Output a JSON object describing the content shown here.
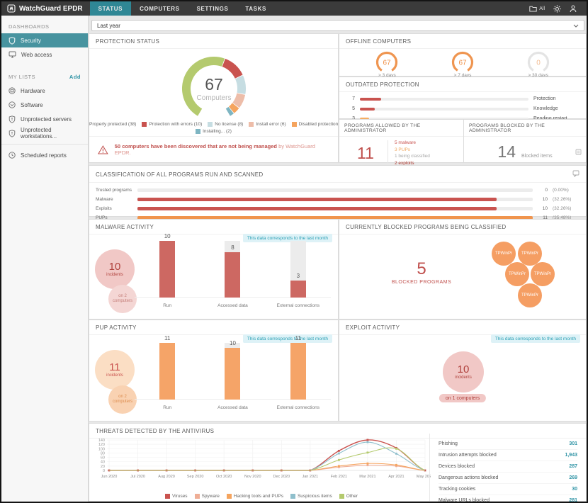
{
  "topbar": {
    "brand": "WatchGuard EPDR",
    "tabs": [
      {
        "label": "STATUS"
      },
      {
        "label": "COMPUTERS"
      },
      {
        "label": "SETTINGS"
      },
      {
        "label": "TASKS"
      }
    ],
    "scope": "All"
  },
  "sidebar": {
    "dashboards_header": "DASHBOARDS",
    "items_dash": [
      {
        "label": "Security"
      },
      {
        "label": "Web access"
      }
    ],
    "my_lists_header": "MY LISTS",
    "add_label": "Add",
    "lists": [
      "Hardware",
      "Software",
      "Unprotected servers",
      "Unprotected workstations...",
      "Scheduled reports"
    ]
  },
  "filter": {
    "value": "Last year"
  },
  "protection": {
    "title": "PROTECTION STATUS",
    "center_value": "67",
    "center_label": "Computers",
    "segments": [
      {
        "label": "Properly protected (38)",
        "value": 38,
        "color": "#b4ca6e"
      },
      {
        "label": "Protection with errors (10)",
        "value": 10,
        "color": "#c9534f"
      },
      {
        "label": "No license (8)",
        "value": 8,
        "color": "#c6dde2"
      },
      {
        "label": "Install error (6)",
        "value": 6,
        "color": "#edbda9"
      },
      {
        "label": "Disabled protection (3)",
        "value": 3,
        "color": "#f5a45e"
      },
      {
        "label": "Installing... (2)",
        "value": 2,
        "color": "#7eb5c2"
      }
    ],
    "warning_bold": "50 computers have been discovered that are not being managed",
    "warning_tail": " by WatchGuard EPDR."
  },
  "offline": {
    "title": "OFFLINE COMPUTERS",
    "gauges": [
      {
        "value": "67",
        "label": "> 3 days",
        "arc": "#ef9550",
        "text": "#ef8f45"
      },
      {
        "value": "67",
        "label": "> 7 days",
        "arc": "#ef9550",
        "text": "#ef8f45"
      },
      {
        "value": "0",
        "label": "> 30 days",
        "arc": "#e4e4e4",
        "text": "#f2bc92"
      }
    ]
  },
  "outdated": {
    "title": "OUTDATED PROTECTION",
    "max": 56,
    "rows": [
      {
        "value": 7,
        "label": "Protection",
        "color": "#c9534f"
      },
      {
        "value": 5,
        "label": "Knowledge",
        "color": "#c9534f"
      },
      {
        "value": 3,
        "label": "Pending restart",
        "color": "#f5ad62"
      }
    ]
  },
  "allowed": {
    "title": "PROGRAMS ALLOWED BY THE ADMINISTRATOR",
    "value": "11",
    "breakdown": [
      {
        "text": "5 malware",
        "color": "#c9534f"
      },
      {
        "text": "3 PUPs",
        "color": "#f0a860"
      },
      {
        "text": "1 being classified",
        "color": "#a9a9a9"
      },
      {
        "text": "2 exploits",
        "color": "#b03a30"
      }
    ]
  },
  "blocked": {
    "title": "PROGRAMS BLOCKED BY THE ADMINISTRATOR",
    "value": "14",
    "label": "Blocked items"
  },
  "classification": {
    "title": "CLASSIFICATION OF ALL PROGRAMS RUN AND SCANNED",
    "max": 11,
    "rows": [
      {
        "label": "Trusted programs",
        "value": 0,
        "value_label": "0",
        "pct": "(0.00%)",
        "color": "#c9534f"
      },
      {
        "label": "Malware",
        "value": 10,
        "value_label": "10",
        "pct": "(32.26%)",
        "color": "#c9534f"
      },
      {
        "label": "Exploits",
        "value": 10,
        "value_label": "10",
        "pct": "(32.26%)",
        "color": "#c9534f"
      },
      {
        "label": "PUPs",
        "value": 11,
        "value_label": "11",
        "pct": "(35.48%)",
        "color": "#f0944d"
      }
    ]
  },
  "malware_activity": {
    "title": "MALWARE ACTIVITY",
    "badge": "This data corresponds to the last month",
    "incidents": "10",
    "incidents_label": "incidents",
    "comp_line1": "on 2",
    "comp_line2": "computers",
    "max": 10,
    "bar_color": "#cd6862",
    "bubble_bg": "#f1c8c6",
    "bubble_fg": "#b0413c",
    "bubble2_bg": "#f4d6d4",
    "bubble2_fg": "#c47d78",
    "bars": [
      {
        "label": "Run",
        "value": 10
      },
      {
        "label": "Accessed data",
        "value": 8
      },
      {
        "label": "External connections",
        "value": 3
      }
    ]
  },
  "blocked_classified": {
    "title": "CURRENTLY BLOCKED PROGRAMS BEING CLASSIFIED",
    "value": "5",
    "label": "BLOCKED PROGRAMS",
    "bubble_color": "#f59e63",
    "bubbles": [
      "TPWinPr",
      "TPWinPr",
      "TPWinPr",
      "TPWinPr",
      "TPWinPr"
    ]
  },
  "pup_activity": {
    "title": "PUP ACTIVITY",
    "badge": "This data corresponds to the last month",
    "incidents": "11",
    "incidents_label": "incidents",
    "comp_line1": "on 2",
    "comp_line2": "computers",
    "max": 11,
    "bar_color": "#f5a468",
    "bubble_bg": "#fbdec4",
    "bubble_fg": "#c9534f",
    "bubble2_bg": "#f9d2b2",
    "bubble2_fg": "#dd8c4e",
    "bars": [
      {
        "label": "Run",
        "value": 11
      },
      {
        "label": "Accessed data",
        "value": 10
      },
      {
        "label": "External connections",
        "value": 11
      }
    ]
  },
  "exploit_activity": {
    "title": "EXPLOIT ACTIVITY",
    "badge": "This data corresponds to the last month",
    "incidents": "10",
    "incidents_label": "incidents",
    "pill": "on 1 computers",
    "bubble_bg": "#f1c8c6",
    "bubble_fg": "#b0413c"
  },
  "threats": {
    "title": "THREATS DETECTED BY THE ANTIVIRUS",
    "chart_data": {
      "type": "line",
      "x": [
        "Jun 2020",
        "Jul 2020",
        "Aug 2020",
        "Sep 2020",
        "Oct 2020",
        "Nov 2020",
        "Dec 2020",
        "Jan 2021",
        "Feb 2021",
        "Mar 2021",
        "Apr 2021",
        "May 2021"
      ],
      "ylim": [
        0,
        140
      ],
      "yticks": [
        0,
        20,
        40,
        60,
        80,
        100,
        120,
        140
      ],
      "grid": true,
      "legend_position": "bottom",
      "series": [
        {
          "name": "Viruses",
          "color": "#c9534f",
          "values": [
            0,
            0,
            0,
            0,
            0,
            0,
            0,
            0,
            90,
            140,
            103,
            0
          ]
        },
        {
          "name": "Spyware",
          "color": "#efae96",
          "values": [
            0,
            0,
            0,
            0,
            0,
            0,
            0,
            0,
            15,
            24,
            20,
            0
          ]
        },
        {
          "name": "Hacking tools and PUPs",
          "color": "#f5a45e",
          "values": [
            0,
            0,
            0,
            0,
            0,
            0,
            0,
            0,
            20,
            32,
            25,
            0
          ]
        },
        {
          "name": "Suspicious items",
          "color": "#8fbfcc",
          "values": [
            0,
            0,
            0,
            0,
            0,
            0,
            0,
            0,
            78,
            130,
            77,
            0
          ]
        },
        {
          "name": "Other",
          "color": "#b4ca6e",
          "values": [
            0,
            0,
            0,
            0,
            0,
            0,
            0,
            0,
            48,
            82,
            100,
            0
          ]
        }
      ]
    },
    "stats": [
      {
        "label": "Phishing",
        "value": "301"
      },
      {
        "label": "Intrusion attempts blocked",
        "value": "1,943"
      },
      {
        "label": "Devices blocked",
        "value": "287"
      },
      {
        "label": "Dangerous actions blocked",
        "value": "269"
      },
      {
        "label": "Tracking cookies",
        "value": "30"
      },
      {
        "label": "Malware URLs blocked",
        "value": "281"
      }
    ]
  }
}
